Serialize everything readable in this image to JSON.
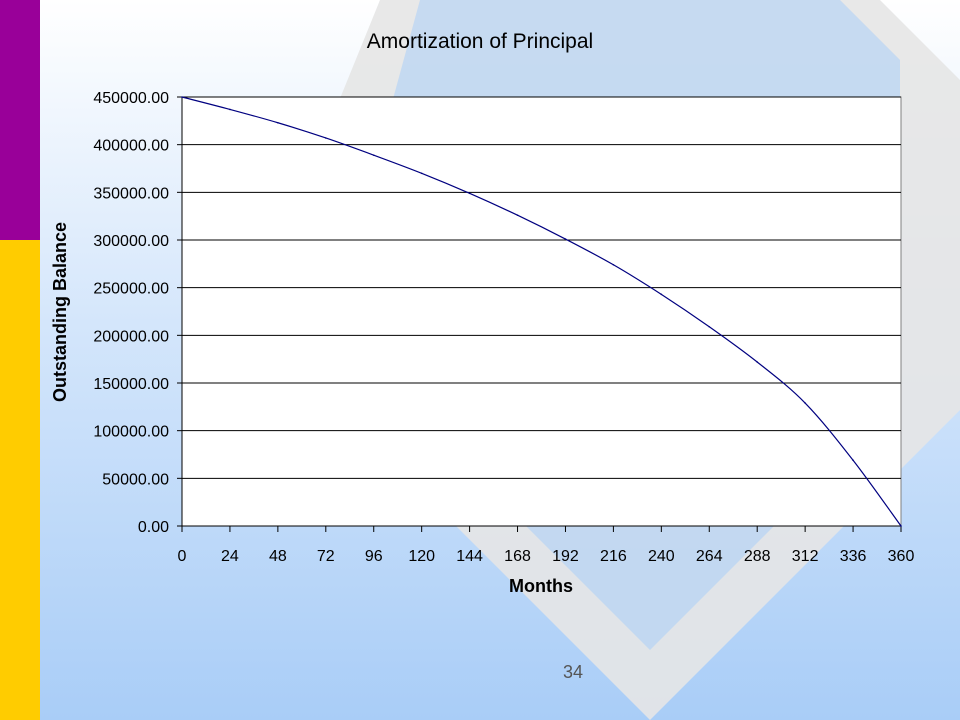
{
  "slide": {
    "page_number": "34",
    "colors": {
      "left_bar_top": "#990099",
      "left_bar_bottom": "#ffcc00",
      "background": "#a9cdf7",
      "diamond": "#e6e6e6",
      "line": "#000080"
    }
  },
  "chart_data": {
    "type": "line",
    "title": "Amortization of Principal",
    "xlabel": "Months",
    "ylabel": "Outstanding Balance",
    "xlim": [
      0,
      360
    ],
    "ylim": [
      0,
      450000
    ],
    "x_ticks": [
      0,
      24,
      48,
      72,
      96,
      120,
      144,
      168,
      192,
      216,
      240,
      264,
      288,
      312,
      336,
      360
    ],
    "x_tick_labels": [
      "0",
      "24",
      "48",
      "72",
      "96",
      "120",
      "144",
      "168",
      "192",
      "216",
      "240",
      "264",
      "288",
      "312",
      "336",
      "360"
    ],
    "y_ticks": [
      0,
      50000,
      100000,
      150000,
      200000,
      250000,
      300000,
      350000,
      400000,
      450000
    ],
    "y_tick_labels": [
      "0.00",
      "50000.00",
      "100000.00",
      "150000.00",
      "200000.00",
      "250000.00",
      "300000.00",
      "350000.00",
      "400000.00",
      "450000.00"
    ],
    "grid": true,
    "legend": "none",
    "series": [
      {
        "x": [
          0,
          24,
          48,
          72,
          96,
          120,
          144,
          168,
          192,
          216,
          240,
          264,
          288,
          312,
          336,
          360
        ],
        "values": [
          450000,
          437000,
          423000,
          407000,
          389000,
          370000,
          349000,
          326000,
          301000,
          274000,
          243000,
          209000,
          172000,
          129000,
          69000,
          0
        ]
      }
    ]
  }
}
